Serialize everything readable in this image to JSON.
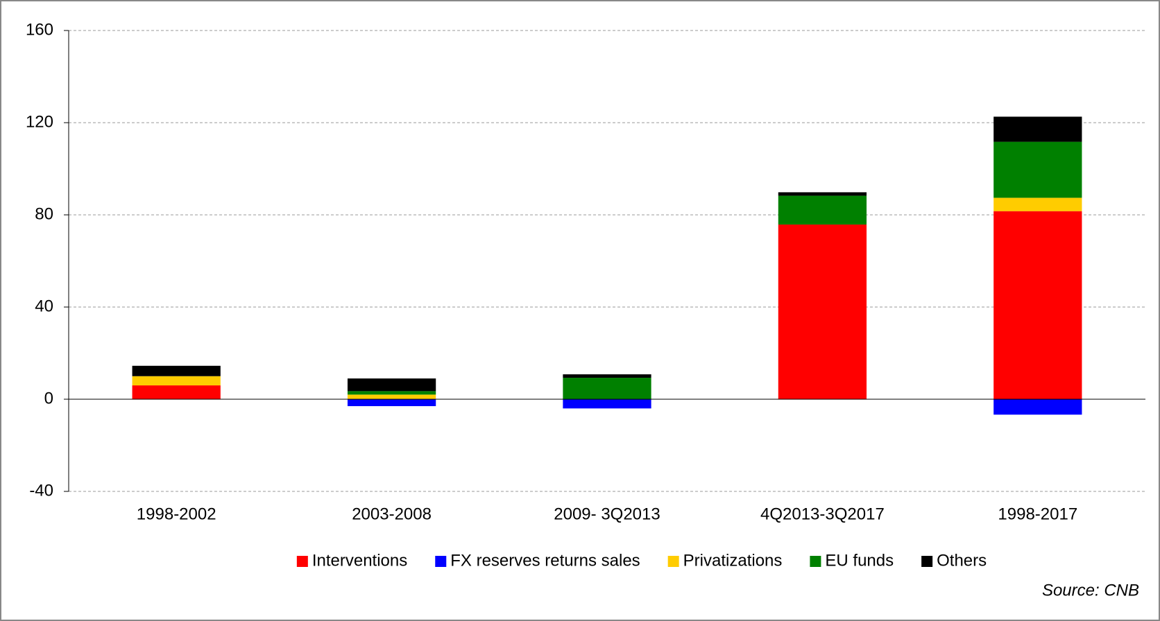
{
  "chart_data": {
    "type": "bar",
    "stacked": true,
    "categories": [
      "1998-2002",
      "2003-2008",
      "2009- 3Q2013",
      "4Q2013-3Q2017",
      "1998-2017"
    ],
    "series": [
      {
        "name": "Interventions",
        "color": "#ff0000",
        "values": [
          6,
          0,
          0,
          75.8,
          81.6
        ]
      },
      {
        "name": "FX reserves returns sales",
        "color": "#0000ff",
        "values": [
          0,
          -3,
          -4,
          0,
          -6.7
        ]
      },
      {
        "name": "Privatizations",
        "color": "#ffcc00",
        "values": [
          4,
          2,
          0,
          0,
          5.8
        ]
      },
      {
        "name": "EU funds",
        "color": "#008000",
        "values": [
          0,
          1.5,
          9.3,
          12.5,
          24.3
        ]
      },
      {
        "name": "Others",
        "color": "#000000",
        "values": [
          4.5,
          5.5,
          1.5,
          1.5,
          10.9
        ]
      }
    ],
    "ylim": [
      -40,
      160
    ],
    "yticks": [
      -40,
      0,
      40,
      80,
      120,
      160
    ],
    "grid": true,
    "legend": "bottom",
    "source": "Source: CNB"
  }
}
